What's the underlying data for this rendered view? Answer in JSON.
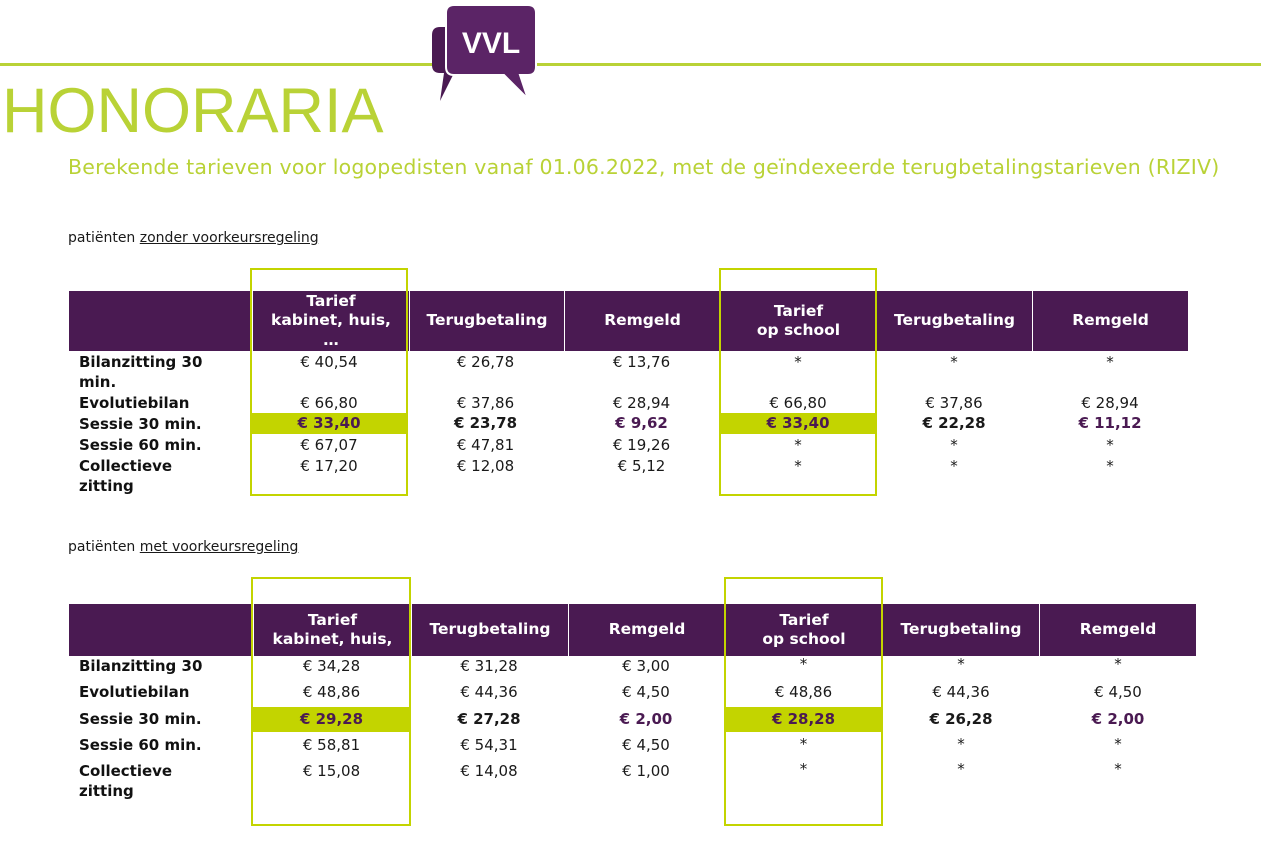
{
  "header": {
    "logo_text": "VVL",
    "title": "HONORARIA",
    "subtitle": "Berekende tarieven voor logopedisten vanaf 01.06.2022, met de geïndexeerde terugbetalingstarieven (RIZIV)"
  },
  "colors": {
    "accent": "#b9d236",
    "highlight": "#c3d400",
    "header_bg": "#4a1a52"
  },
  "section1": {
    "label_prefix": "patiënten ",
    "label_link": "zonder voorkeursregeling",
    "columns": [
      "",
      "Tarief kabinet, huis, …",
      "Terugbetaling",
      "Remgeld",
      "Tarief op school",
      "Terugbetaling",
      "Remgeld"
    ],
    "col1_lines": [
      "Tarief",
      "kabinet, huis,",
      "…"
    ],
    "col4_lines": [
      "Tarief",
      "op school"
    ],
    "rows": [
      {
        "label": "Bilanzitting 30 min.",
        "values": [
          "€ 40,54",
          "€ 26,78",
          "€ 13,76",
          "*",
          "*",
          "*"
        ]
      },
      {
        "label": "Evolutiebilan",
        "values": [
          "€ 66,80",
          "€ 37,86",
          "€ 28,94",
          "€ 66,80",
          "€ 37,86",
          "€ 28,94"
        ]
      },
      {
        "label": "Sessie 30 min.",
        "values": [
          "€ 33,40",
          "€ 23,78",
          "€ 9,62",
          "€ 33,40",
          "€ 22,28",
          "€ 11,12"
        ]
      },
      {
        "label": "Sessie 60 min.",
        "values": [
          "€ 67,07",
          "€ 47,81",
          "€ 19,26",
          "*",
          "*",
          "*"
        ]
      },
      {
        "label": "Collectieve zitting",
        "values": [
          "€ 17,20",
          "€ 12,08",
          "€ 5,12",
          "*",
          "*",
          "*"
        ]
      }
    ]
  },
  "section2": {
    "label_prefix": "patiënten ",
    "label_link": "met voorkeursregeling",
    "columns": [
      "",
      "Tarief kabinet, huis,",
      "Terugbetaling",
      "Remgeld",
      "Tarief op school",
      "Terugbetaling",
      "Remgeld"
    ],
    "col1_lines": [
      "Tarief",
      "kabinet, huis,"
    ],
    "col4_lines": [
      "Tarief",
      "op school"
    ],
    "rows": [
      {
        "label": "Bilanzitting 30",
        "values": [
          "€ 34,28",
          "€ 31,28",
          "€ 3,00",
          "*",
          "*",
          "*"
        ]
      },
      {
        "label": "Evolutiebilan",
        "values": [
          "€ 48,86",
          "€ 44,36",
          "€ 4,50",
          "€ 48,86",
          "€ 44,36",
          "€ 4,50"
        ]
      },
      {
        "label": "Sessie 30 min.",
        "values": [
          "€ 29,28",
          "€ 27,28",
          "€ 2,00",
          "€ 28,28",
          "€ 26,28",
          "€ 2,00"
        ]
      },
      {
        "label": "Sessie 60 min.",
        "values": [
          "€ 58,81",
          "€ 54,31",
          "€ 4,50",
          "*",
          "*",
          "*"
        ]
      },
      {
        "label": "Collectieve zitting",
        "values": [
          "€ 15,08",
          "€ 14,08",
          "€ 1,00",
          "*",
          "*",
          "*"
        ]
      }
    ]
  }
}
